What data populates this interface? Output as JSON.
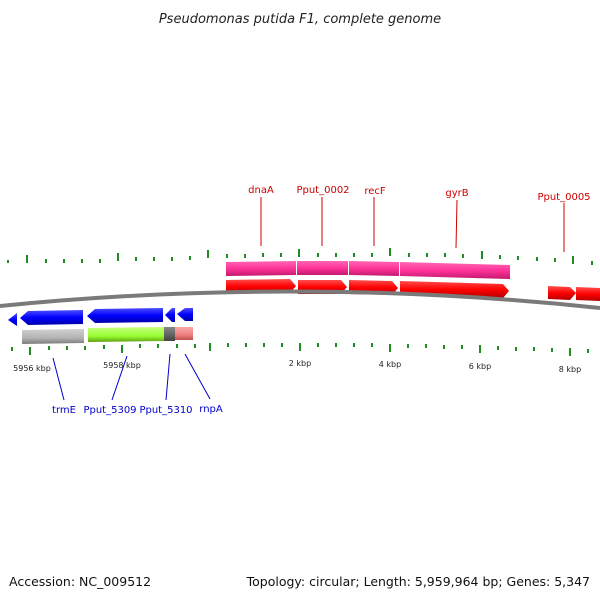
{
  "title": "Pseudomonas putida F1, complete genome",
  "accession": "Accession: NC_009512",
  "summary": "Topology: circular; Length: 5,959,964 bp; Genes: 5,347",
  "scale_labels": [
    "5956 kbp",
    "5958 kbp",
    "2 kbp",
    "4 kbp",
    "6 kbp",
    "8 kbp"
  ],
  "genes_top": [
    {
      "name": "dnaA",
      "color": "#cc0000"
    },
    {
      "name": "Pput_0002",
      "color": "#cc0000"
    },
    {
      "name": "recF",
      "color": "#cc0000"
    },
    {
      "name": "gyrB",
      "color": "#cc0000"
    },
    {
      "name": "Pput_0005",
      "color": "#cc0000"
    }
  ],
  "genes_bottom": [
    {
      "name": "trmE",
      "color": "#0000cc"
    },
    {
      "name": "Pput_5309",
      "color": "#0000cc"
    },
    {
      "name": "Pput_5310",
      "color": "#0000cc"
    },
    {
      "name": "rnpA",
      "color": "#0000cc"
    }
  ],
  "colors": {
    "backbone": "#7a7a7a",
    "forward_cds": "#ff0000",
    "reverse_cds": "#0000ff",
    "rna_track": "#ff3399",
    "tick": "#228b22",
    "green_block": "#99ff33",
    "gray_block": "#b3b3b3",
    "pink_block": "#f08080",
    "dark_block": "#666666"
  }
}
